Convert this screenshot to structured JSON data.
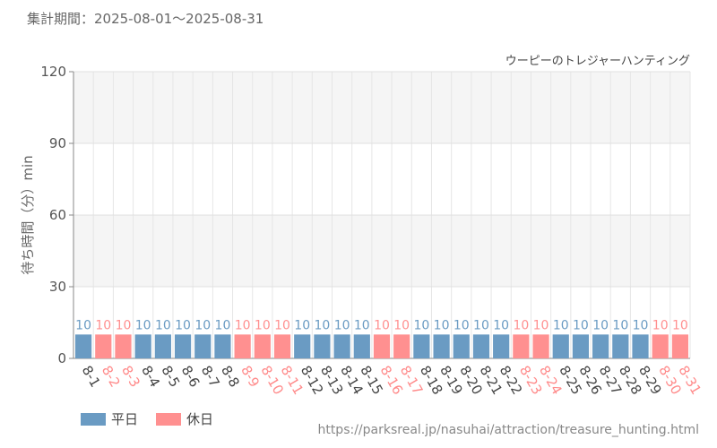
{
  "period_label": "集計期間：2025-08-01～2025-08-31",
  "source_url": "https://parksreal.jp/nasuhai/attraction/treasure_hunting.html",
  "colors": {
    "weekday": "#6a9bc3",
    "holiday": "#ff9090"
  },
  "chart_data": {
    "type": "bar",
    "title": "ウーピーのトレジャーハンティング",
    "ylabel": "待ち時間（分）min",
    "ylim": [
      0,
      120
    ],
    "yticks": [
      0,
      30,
      60,
      90,
      120
    ],
    "grid": true,
    "legend_position": "bottom-left",
    "legend": [
      {
        "name": "平日",
        "key": "weekday"
      },
      {
        "name": "休日",
        "key": "holiday"
      }
    ],
    "categories": [
      "8-1",
      "8-2",
      "8-3",
      "8-4",
      "8-5",
      "8-6",
      "8-7",
      "8-8",
      "8-9",
      "8-10",
      "8-11",
      "8-12",
      "8-13",
      "8-14",
      "8-15",
      "8-16",
      "8-17",
      "8-18",
      "8-19",
      "8-20",
      "8-21",
      "8-22",
      "8-23",
      "8-24",
      "8-25",
      "8-26",
      "8-27",
      "8-28",
      "8-29",
      "8-30",
      "8-31"
    ],
    "values": [
      10,
      10,
      10,
      10,
      10,
      10,
      10,
      10,
      10,
      10,
      10,
      10,
      10,
      10,
      10,
      10,
      10,
      10,
      10,
      10,
      10,
      10,
      10,
      10,
      10,
      10,
      10,
      10,
      10,
      10,
      10
    ],
    "day_type": [
      "weekday",
      "holiday",
      "holiday",
      "weekday",
      "weekday",
      "weekday",
      "weekday",
      "weekday",
      "holiday",
      "holiday",
      "holiday",
      "weekday",
      "weekday",
      "weekday",
      "weekday",
      "holiday",
      "holiday",
      "weekday",
      "weekday",
      "weekday",
      "weekday",
      "weekday",
      "holiday",
      "holiday",
      "weekday",
      "weekday",
      "weekday",
      "weekday",
      "weekday",
      "holiday",
      "holiday"
    ]
  }
}
